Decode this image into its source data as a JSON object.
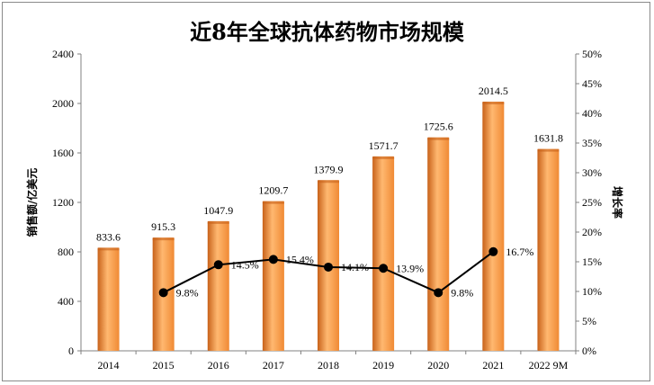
{
  "chart_data": {
    "type": "bar",
    "title": "近8年全球抗体药物市场规模",
    "categories": [
      "2014",
      "2015",
      "2016",
      "2017",
      "2018",
      "2019",
      "2020",
      "2021",
      "2022 9M"
    ],
    "series": [
      {
        "name": "销售额/亿美元",
        "type": "bar",
        "axis": "left",
        "values": [
          833.6,
          915.3,
          1047.9,
          1209.7,
          1379.9,
          1571.7,
          1725.6,
          2014.5,
          1631.8
        ],
        "labels": [
          "833.6",
          "915.3",
          "1047.9",
          "1209.7",
          "1379.9",
          "1571.7",
          "1725.6",
          "2014.5",
          "1631.8"
        ]
      },
      {
        "name": "增长率",
        "type": "line",
        "axis": "right",
        "values": [
          null,
          9.8,
          14.5,
          15.4,
          14.1,
          13.9,
          9.8,
          16.7,
          null
        ],
        "labels": [
          null,
          "9.8%",
          "14.5%",
          "15.4%",
          "14.1%",
          "13.9%",
          "9.8%",
          "16.7%",
          null
        ]
      }
    ],
    "ylabel": "销售额/亿美元",
    "y2label": "增长率",
    "ylim": [
      0,
      2400
    ],
    "yticks": [
      "0",
      "400",
      "800",
      "1200",
      "1600",
      "2000",
      "2400"
    ],
    "y2lim": [
      0,
      50
    ],
    "y2ticks": [
      "0%",
      "5%",
      "10%",
      "15%",
      "20%",
      "25%",
      "30%",
      "35%",
      "40%",
      "45%",
      "50%"
    ],
    "colors": {
      "bar": "#f08a34",
      "bar_dark": "#c8621a",
      "bar_light": "#ffb870",
      "line": "#000000",
      "marker": "#000000"
    }
  }
}
